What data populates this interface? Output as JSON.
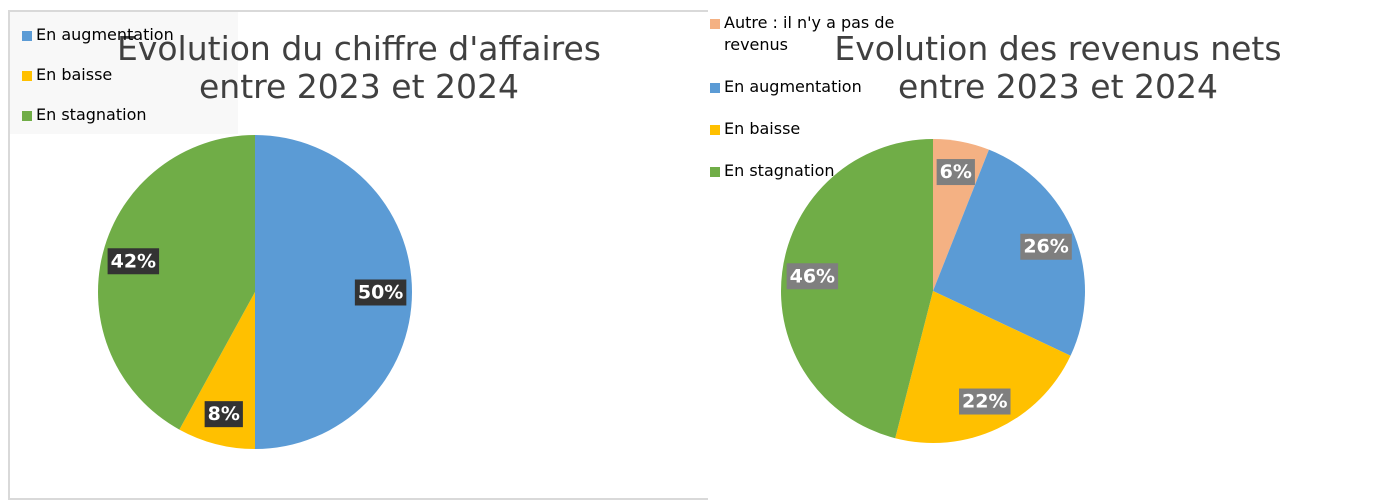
{
  "chart_data": [
    {
      "type": "pie",
      "title": "Evolution du chiffre d'affaires\nentre 2023 et 2024",
      "categories": [
        "En augmentation",
        "En baisse",
        "En stagnation"
      ],
      "values": [
        50,
        8,
        42
      ],
      "value_labels": [
        "50%",
        "8%",
        "42%"
      ],
      "colors": [
        "#5b9bd5",
        "#ffc000",
        "#70ad47"
      ],
      "legend": "right"
    },
    {
      "type": "pie",
      "title": "Evolution des revenus nets\nentre 2023 et 2024",
      "categories": [
        "Autre : il n'y a pas de revenus",
        "En augmentation",
        "En baisse",
        "En stagnation"
      ],
      "values": [
        6,
        26,
        22,
        46
      ],
      "value_labels": [
        "6%",
        "26%",
        "22%",
        "46%"
      ],
      "colors": [
        "#f4b183",
        "#5b9bd5",
        "#ffc000",
        "#70ad47"
      ],
      "legend": "right"
    }
  ]
}
